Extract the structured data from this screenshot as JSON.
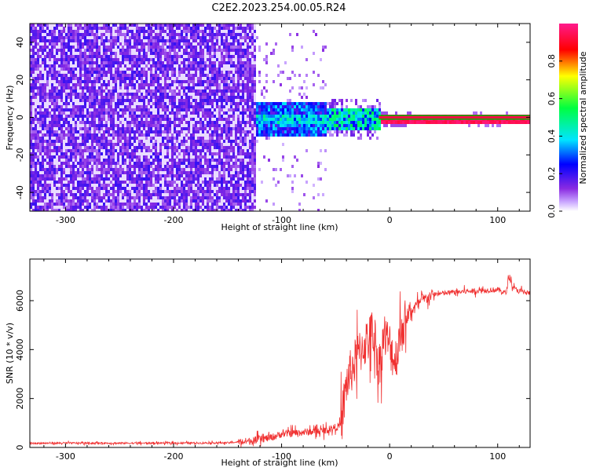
{
  "title": "C2E2.2023.254.00.05.R24",
  "colors": {
    "snr_line": "#f03030",
    "spectrum_cmap": [
      "#ffffff",
      "#8a2be2",
      "#5a00ff",
      "#0000ff",
      "#00e5ff",
      "#00ff40",
      "#ffff00",
      "#ff0000",
      "#ff1a8c"
    ]
  },
  "chart_data": [
    {
      "type": "heatmap",
      "xlabel": "Height of straight line (km)",
      "ylabel": "Frequency (Hz)",
      "xlim": [
        -333,
        130
      ],
      "ylim": [
        -50,
        50
      ],
      "x_ticks": [
        -300,
        -200,
        -100,
        0,
        100
      ],
      "y_ticks": [
        -40,
        -20,
        0,
        20,
        40
      ],
      "colorbar": {
        "label": "Normalized spectral amplitude",
        "range": [
          0.0,
          1.0
        ],
        "ticks": [
          "0.0",
          "0.2",
          "0.4",
          "0.6",
          "0.8"
        ],
        "tick_values": [
          0.0,
          0.2,
          0.4,
          0.6,
          0.8
        ]
      },
      "regions": [
        {
          "x_range": [
            -333,
            -125
          ],
          "freq_range": [
            -50,
            50
          ],
          "amplitude": 0.1,
          "description_value": "broadband noise"
        },
        {
          "x_range": [
            -125,
            -10
          ],
          "freq_range": [
            -12,
            10
          ],
          "amplitude": 0.35
        },
        {
          "x_range": [
            -10,
            130
          ],
          "freq_range": [
            -1.5,
            1.5
          ],
          "amplitude": 0.95
        }
      ]
    },
    {
      "type": "line",
      "xlabel": "Height of straight line (km)",
      "ylabel": "SNR (10 * v/v)",
      "xlim": [
        -333,
        130
      ],
      "ylim": [
        0,
        7700
      ],
      "x_ticks": [
        -300,
        -200,
        -100,
        0,
        100
      ],
      "y_ticks": [
        0,
        2000,
        4000,
        6000
      ],
      "series": [
        {
          "x": [
            -333,
            -300,
            -250,
            -200,
            -150,
            -130,
            -110,
            -100,
            -80,
            -60,
            -45,
            -40,
            -35,
            -30,
            -25,
            -20,
            -15,
            -10,
            -5,
            0,
            5,
            10,
            15,
            20,
            30,
            40,
            50,
            60,
            80,
            100,
            108,
            110,
            115,
            120,
            130
          ],
          "y": [
            170,
            180,
            175,
            180,
            190,
            260,
            400,
            550,
            620,
            680,
            900,
            2600,
            3200,
            3700,
            4100,
            4400,
            4800,
            3300,
            4600,
            4200,
            3500,
            4700,
            5200,
            5600,
            6000,
            6250,
            6300,
            6350,
            6400,
            6450,
            6300,
            7000,
            6500,
            6400,
            6300
          ]
        }
      ]
    }
  ]
}
